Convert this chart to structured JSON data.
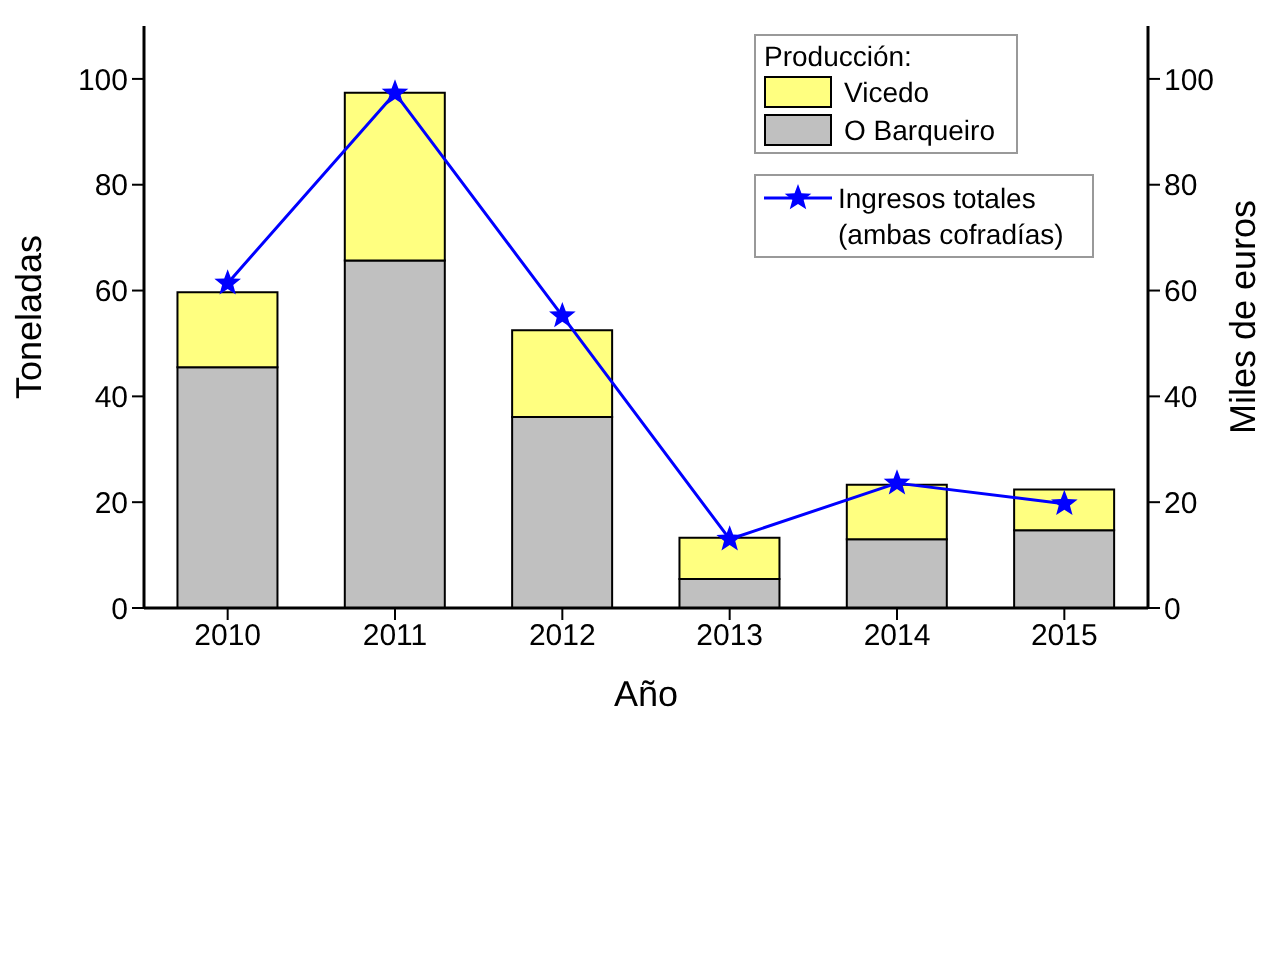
{
  "chart_data": {
    "type": "bar",
    "stacked": true,
    "categories": [
      "2010",
      "2011",
      "2012",
      "2013",
      "2014",
      "2015"
    ],
    "series": [
      {
        "name": "O Barqueiro",
        "color": "#c0c0c0",
        "values": [
          45.5,
          65.7,
          36.1,
          5.5,
          13.0,
          14.7
        ]
      },
      {
        "name": "Vicedo",
        "color": "#ffff80",
        "values": [
          14.2,
          31.7,
          16.4,
          7.8,
          10.3,
          7.7
        ]
      },
      {
        "name": "Ingresos totales (ambas cofradías)",
        "type": "line",
        "axis": "y2",
        "color": "#0000ff",
        "marker": "star",
        "line_style": "solid",
        "values": [
          61.4,
          97.3,
          55.2,
          13.0,
          23.6,
          19.7
        ]
      }
    ],
    "xlabel": "Año",
    "ylabel": "Toneladas",
    "y2label": "Miles de euros",
    "legend_title": "Producción:",
    "ylim": [
      0,
      110
    ],
    "yticks": [
      0,
      20,
      40,
      60,
      80,
      100
    ],
    "y2lim": [
      0,
      110
    ],
    "y2ticks": [
      0,
      20,
      40,
      60,
      80,
      100
    ],
    "grid": false,
    "legend": "top right"
  }
}
